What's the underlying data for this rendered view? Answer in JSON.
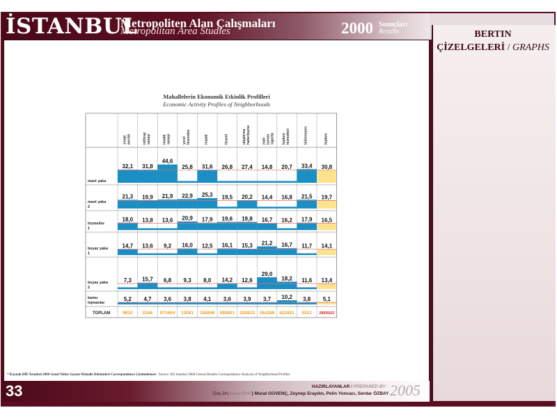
{
  "header": {
    "brand": "İSTANBUL",
    "subtitle_tr": "Metropoliten Alan Çalışmaları",
    "subtitle_en": "Metropolitan Area Studies",
    "year": "2000",
    "results_tr": "Sonuçları",
    "results_en": "Results"
  },
  "side": {
    "line1": "BERTIN",
    "line2_tr": "ÇİZELGELERİ",
    "line2_sep": " / ",
    "line2_en": "GRAPHS"
  },
  "footer": {
    "page_number": "33",
    "prepared_tr": "HAZIRLAYANLAR",
    "prepared_sep": " / ",
    "prepared_en": "PREPARED BY :",
    "authors_prefix": "Doç.Dr(",
    "authors_title_en": "Assoc.Prof.",
    "authors_rest": ") Murat GÜVENÇ, Zeynep Eraydın, Pelin Yoncacı, Serdar ÖZBAY",
    "year": "2005"
  },
  "source_note": {
    "tr": "* Kaynak.DİE İstanbul 2000 Genel Nüfus Sayımı Mahalle Dökümleri Correspondence Çözümlemesi",
    "sep": " / ",
    "en": "Source: SIS Istanbul 2000 Census Results Correspondence Analysis of Neighborhood Profiles"
  },
  "colors": {
    "bar": "#1b8fc4",
    "mean_highlight": "#ffe28a",
    "total_values": "#f0a020",
    "grand_total": "#e02020",
    "avg_line": "#e86a6a",
    "brand": "#5a0e20"
  },
  "chart_data": {
    "type": "table",
    "title": "Mahallelerin Ekonomik Etkinlik Profilleri",
    "subtitle": "Economic Activity Profiles of Neighborhoods",
    "columns": [
      "ziraat avcılık",
      "istihraç sanayi",
      "imalat sanayi",
      "yerel hizmetler",
      "inşaat",
      "ticaret",
      "ulaştırma haberleşme",
      "mali kurum sigorta",
      "toplum hizmetleri",
      "bilinmeyen",
      "toplam"
    ],
    "rows": [
      {
        "label": "mavi yaka",
        "values": [
          32.1,
          31.8,
          44.6,
          25.8,
          31.6,
          26.8,
          27.4,
          14.8,
          20.7,
          33.4,
          30.8
        ],
        "display": [
          "32,1",
          "31,8",
          "44,6",
          "25,8",
          "31,6",
          "26,8",
          "27,4",
          "14,8",
          "20,7",
          "33,4",
          "30,8"
        ]
      },
      {
        "label": "mavi yaka 2",
        "values": [
          21.3,
          19.9,
          21.9,
          22.9,
          25.3,
          19.5,
          20.2,
          14.4,
          16.8,
          21.5,
          19.7
        ],
        "display": [
          "21,3",
          "19,9",
          "21,9",
          "22,9",
          "25,3",
          "19,5",
          "20,2",
          "14,4",
          "16,8",
          "21,5",
          "19,7"
        ]
      },
      {
        "label": "hizmetler 1",
        "values": [
          18.0,
          13.8,
          13.6,
          20.9,
          17.9,
          19.6,
          19.8,
          16.7,
          16.2,
          17.9,
          16.5
        ],
        "display": [
          "18,0",
          "13,8",
          "13,6",
          "20,9",
          "17,9",
          "19,6",
          "19,8",
          "16,7",
          "16,2",
          "17,9",
          "16,5"
        ]
      },
      {
        "label": "beyaz yaka 1",
        "values": [
          14.7,
          13.6,
          9.2,
          16.0,
          12.5,
          16.1,
          15.3,
          21.2,
          16.7,
          11.7,
          14.1
        ],
        "display": [
          "14,7",
          "13,6",
          "9,2",
          "16,0",
          "12,5",
          "16,1",
          "15,3",
          "21,2",
          "16,7",
          "11,7",
          "14,1"
        ]
      },
      {
        "label": "beyaz yaka 2",
        "values": [
          7.3,
          15.7,
          6.8,
          9.3,
          8.0,
          14.2,
          12.6,
          29.0,
          18.2,
          11.6,
          13.4
        ],
        "display": [
          "7,3",
          "15,7",
          "6,8",
          "9,3",
          "8,0",
          "14,2",
          "12,6",
          "29,0",
          "18,2",
          "11,6",
          "13,4"
        ]
      },
      {
        "label": "kamu lojmanlar",
        "values": [
          5.2,
          4.7,
          3.6,
          3.8,
          4.1,
          3.6,
          3.9,
          3.7,
          10.2,
          3.8,
          5.1
        ],
        "display": [
          "5,2",
          "4,7",
          "3,6",
          "3,8",
          "4,1",
          "3,6",
          "3,9",
          "3,7",
          "10,2",
          "3,8",
          "5,1"
        ]
      }
    ],
    "totals": {
      "label": "TOPLAM",
      "values": [
        9810,
        2346,
        971604,
        13081,
        168946,
        590801,
        200813,
        264269,
        622821,
        5531,
        2850022
      ]
    }
  }
}
